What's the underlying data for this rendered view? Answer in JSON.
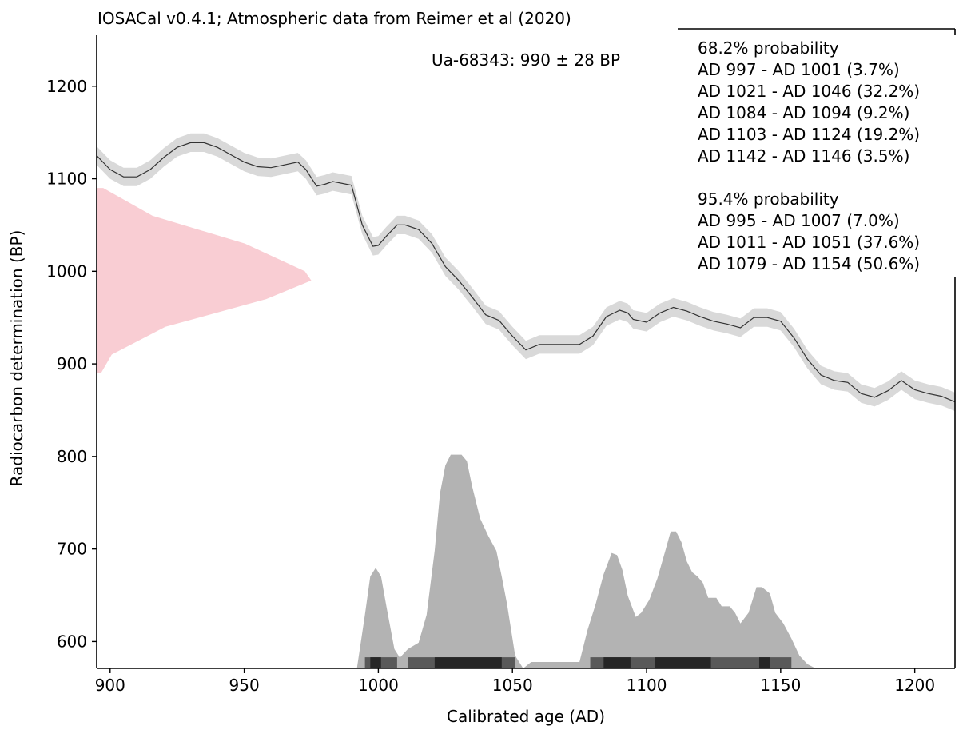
{
  "chart_data": {
    "type": "area",
    "title": "IOSACal v0.4.1; Atmospheric data from Reimer et al (2020)",
    "xlabel": "Calibrated age (AD)",
    "ylabel": "Radiocarbon determination (BP)",
    "xlim": [
      895,
      1215
    ],
    "ylim": [
      571,
      1262
    ],
    "xticks": [
      900,
      950,
      1000,
      1050,
      1100,
      1150,
      1200
    ],
    "yticks": [
      600,
      700,
      800,
      900,
      1000,
      1100,
      1200
    ],
    "sample_label": "Ua-68343: 990 ± 28 BP",
    "measurement": {
      "mean": 990,
      "sigma": 28,
      "peak_age": 975
    },
    "calibration_curve": {
      "sigma": 10,
      "x": [
        895,
        900,
        905,
        910,
        915,
        920,
        925,
        930,
        935,
        940,
        945,
        950,
        955,
        960,
        965,
        970,
        973,
        977,
        980,
        983,
        990,
        994,
        998,
        1000,
        1003,
        1007,
        1010,
        1015,
        1020,
        1025,
        1030,
        1035,
        1040,
        1045,
        1050,
        1055,
        1060,
        1065,
        1070,
        1075,
        1080,
        1085,
        1090,
        1093,
        1095,
        1100,
        1105,
        1110,
        1115,
        1120,
        1125,
        1130,
        1135,
        1140,
        1145,
        1150,
        1155,
        1160,
        1165,
        1170,
        1175,
        1180,
        1185,
        1190,
        1195,
        1200,
        1205,
        1210,
        1215
      ],
      "y": [
        1125,
        1110,
        1102,
        1102,
        1110,
        1123,
        1134,
        1139,
        1139,
        1134,
        1126,
        1118,
        1113,
        1112,
        1115,
        1118,
        1110,
        1092,
        1094,
        1097,
        1093,
        1050,
        1027,
        1028,
        1038,
        1050,
        1050,
        1045,
        1030,
        1005,
        990,
        972,
        953,
        947,
        930,
        915,
        921,
        921,
        921,
        921,
        930,
        951,
        958,
        955,
        948,
        945,
        955,
        961,
        957,
        951,
        946,
        943,
        939,
        950,
        950,
        946,
        928,
        905,
        888,
        882,
        880,
        868,
        864,
        871,
        882,
        872,
        868,
        865,
        859
      ]
    },
    "measurement_curve": {
      "y": [
        1090,
        1060,
        1030,
        1000,
        990,
        970,
        940,
        910,
        890
      ],
      "value": [
        0.03,
        0.26,
        0.69,
        0.97,
        1.0,
        0.79,
        0.32,
        0.07,
        0.02
      ]
    },
    "calibrated_distribution": {
      "x": [
        992,
        995,
        997,
        999,
        1001,
        1003,
        1006,
        1008,
        1011,
        1015,
        1018,
        1021,
        1023,
        1025,
        1027,
        1029,
        1031,
        1033,
        1035,
        1038,
        1041,
        1044,
        1046,
        1048,
        1051,
        1054,
        1057,
        1060,
        1065,
        1070,
        1075,
        1078,
        1081,
        1084,
        1087,
        1089,
        1091,
        1093,
        1096,
        1098,
        1101,
        1104,
        1107,
        1109,
        1111,
        1113,
        1115,
        1117,
        1119,
        1121,
        1123,
        1126,
        1128,
        1131,
        1133,
        1135,
        1138,
        1141,
        1143,
        1146,
        1148,
        1151,
        1154,
        1157,
        1160,
        1163
      ],
      "value": [
        0.0,
        0.25,
        0.43,
        0.47,
        0.43,
        0.29,
        0.09,
        0.05,
        0.09,
        0.12,
        0.25,
        0.55,
        0.82,
        0.95,
        1.0,
        1.0,
        1.0,
        0.97,
        0.85,
        0.7,
        0.62,
        0.55,
        0.43,
        0.3,
        0.06,
        0.0,
        0.03,
        0.03,
        0.03,
        0.03,
        0.03,
        0.18,
        0.3,
        0.44,
        0.54,
        0.53,
        0.46,
        0.34,
        0.24,
        0.26,
        0.32,
        0.42,
        0.55,
        0.64,
        0.64,
        0.59,
        0.5,
        0.45,
        0.43,
        0.4,
        0.33,
        0.33,
        0.29,
        0.29,
        0.26,
        0.21,
        0.26,
        0.38,
        0.38,
        0.35,
        0.26,
        0.21,
        0.14,
        0.06,
        0.02,
        0.0
      ]
    },
    "ranges": {
      "one_sigma": [
        [
          997,
          1001
        ],
        [
          1021,
          1046
        ],
        [
          1084,
          1094
        ],
        [
          1103,
          1124
        ],
        [
          1142,
          1146
        ]
      ],
      "two_sigma": [
        [
          995,
          1007
        ],
        [
          1011,
          1051
        ],
        [
          1079,
          1154
        ]
      ]
    },
    "legend": {
      "heading_68": "68.2% probability",
      "lines_68": [
        "AD 997 - AD 1001 (3.7%)",
        "AD 1021 - AD 1046 (32.2%)",
        "AD 1084 - AD 1094 (9.2%)",
        "AD 1103 - AD 1124 (19.2%)",
        "AD 1142 - AD 1146 (3.5%)"
      ],
      "heading_95": "95.4% probability",
      "lines_95": [
        "AD 995 - AD 1007 (7.0%)",
        "AD 1011 - AD 1051 (37.6%)",
        "AD 1079 - AD 1154 (50.6%)"
      ]
    },
    "colors": {
      "curve_band": "#d9d9d9",
      "curve_line": "#333333",
      "measurement": "#f9cdd3",
      "distribution": "#b3b3b3",
      "range_95": "#595959",
      "range_68": "#262626"
    }
  }
}
